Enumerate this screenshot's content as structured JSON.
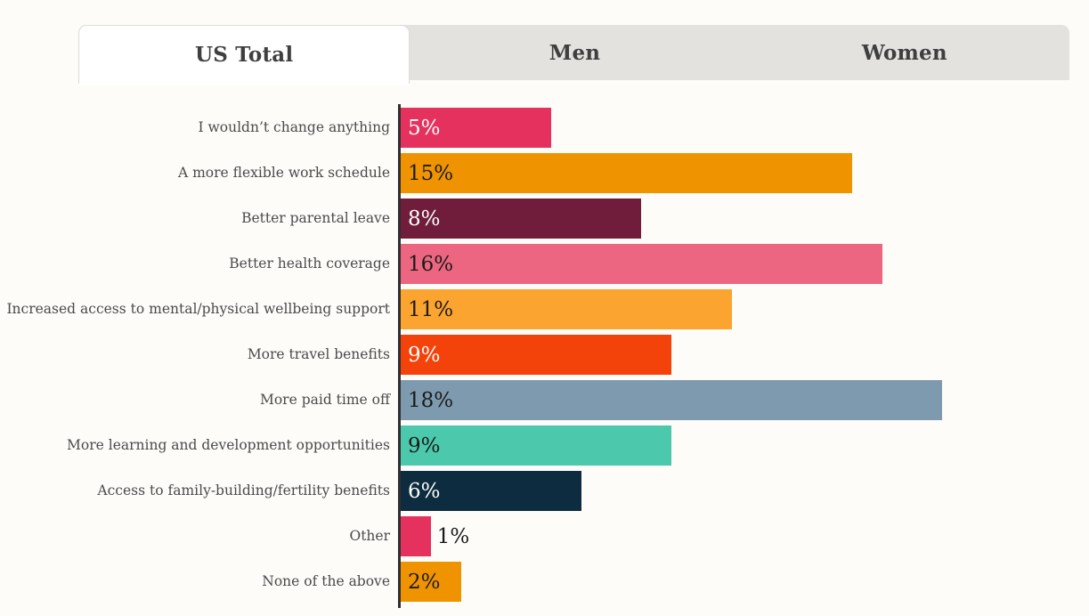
{
  "tabs": [
    {
      "label": "US Total",
      "active": true
    },
    {
      "label": "Men",
      "active": false
    },
    {
      "label": "Women",
      "active": false
    }
  ],
  "chart_data": {
    "type": "bar",
    "orientation": "horizontal",
    "title": "",
    "xlabel": "",
    "ylabel": "",
    "unit": "%",
    "xlim": [
      0,
      22
    ],
    "grid": false,
    "legend": false,
    "axis_color": "#2f2f2f",
    "categories": [
      "I wouldn’t change anything",
      "A more flexible work schedule",
      "Better parental leave",
      "Better health coverage",
      "Increased access to mental/physical wellbeing support",
      "More travel benefits",
      "More paid time off",
      "More learning and development opportunities",
      "Access to family-building/fertility benefits",
      "Other",
      "None of the above"
    ],
    "values": [
      5,
      15,
      8,
      16,
      11,
      9,
      18,
      9,
      6,
      1,
      2
    ],
    "value_labels": [
      "5%",
      "15%",
      "8%",
      "16%",
      "11%",
      "9%",
      "18%",
      "9%",
      "6%",
      "1%",
      "2%"
    ],
    "bar_colors": [
      "#e5315d",
      "#f09300",
      "#6f1d3b",
      "#ec6681",
      "#fba42f",
      "#f4430a",
      "#7e9aae",
      "#4cc8ad",
      "#0e2c3f",
      "#e5315d",
      "#f09300"
    ],
    "value_label_colors": [
      "#ffffff",
      "#1a1a1a",
      "#ffffff",
      "#1a1a1a",
      "#1a1a1a",
      "#ffffff",
      "#1a1a1a",
      "#1a1a1a",
      "#ffffff",
      "#1a1a1a",
      "#1a1a1a"
    ],
    "value_label_outside": [
      false,
      false,
      false,
      false,
      false,
      false,
      false,
      false,
      false,
      true,
      false
    ]
  }
}
